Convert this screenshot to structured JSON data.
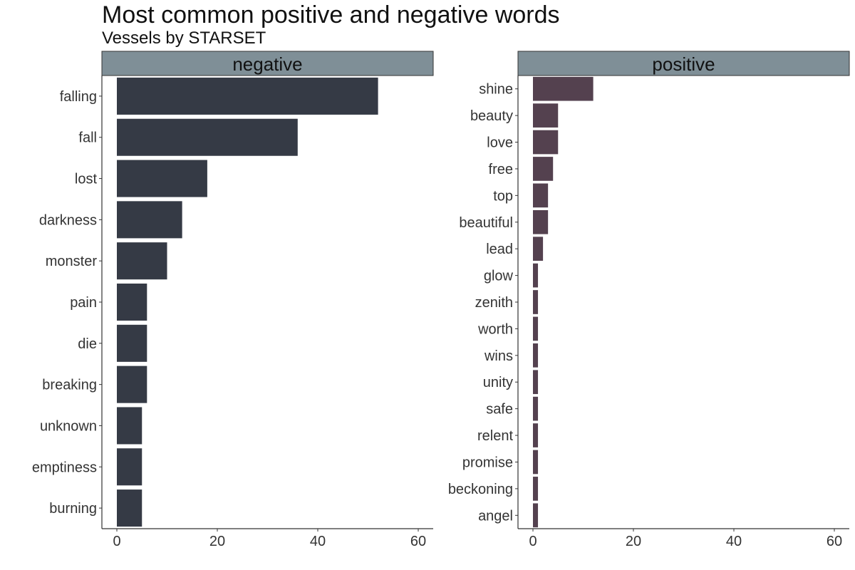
{
  "chart_data": {
    "type": "bar",
    "orientation": "horizontal",
    "title": "Most common positive and negative words",
    "subtitle": "Vessels by STARSET",
    "xlabel": "",
    "ylabel": "",
    "xlim": [
      0,
      63
    ],
    "x_ticks": [
      0,
      20,
      40,
      60
    ],
    "grid": false,
    "legend": "none",
    "panels": [
      {
        "name": "negative",
        "color": "#353a45",
        "categories": [
          "falling",
          "fall",
          "lost",
          "darkness",
          "monster",
          "pain",
          "die",
          "breaking",
          "unknown",
          "emptiness",
          "burning"
        ],
        "values": [
          52,
          36,
          18,
          13,
          10,
          6,
          6,
          6,
          5,
          5,
          5
        ]
      },
      {
        "name": "positive",
        "color": "#54414f",
        "categories": [
          "shine",
          "beauty",
          "love",
          "free",
          "top",
          "beautiful",
          "lead",
          "glow",
          "zenith",
          "worth",
          "wins",
          "unity",
          "safe",
          "relent",
          "promise",
          "beckoning",
          "angel"
        ],
        "values": [
          12,
          5,
          5,
          4,
          3,
          3,
          2,
          1,
          1,
          1,
          1,
          1,
          1,
          1,
          1,
          1,
          1
        ]
      }
    ]
  },
  "style": {
    "strip_fill": "#7f8f97",
    "axis_color": "#333333"
  }
}
